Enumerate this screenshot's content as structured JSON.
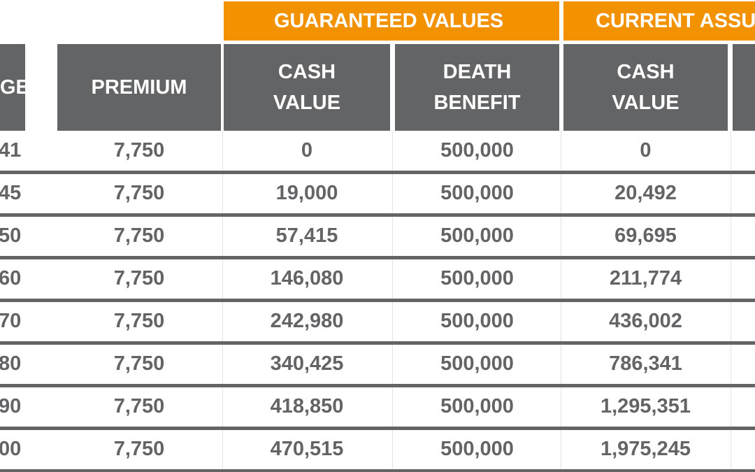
{
  "header": {
    "groups": [
      "GUARANTEED VALUES",
      "CURRENT ASSU"
    ],
    "columns": [
      [
        "GE"
      ],
      [
        "PREMIUM"
      ],
      [
        "CASH",
        "VALUE"
      ],
      [
        "DEATH",
        "BENEFIT"
      ],
      [
        "CASH",
        "VALUE"
      ]
    ]
  },
  "table": {
    "rows": [
      [
        "41",
        "7,750",
        "0",
        "500,000",
        "0"
      ],
      [
        "45",
        "7,750",
        "19,000",
        "500,000",
        "20,492"
      ],
      [
        "50",
        "7,750",
        "57,415",
        "500,000",
        "69,695"
      ],
      [
        "60",
        "7,750",
        "146,080",
        "500,000",
        "211,774"
      ],
      [
        "70",
        "7,750",
        "242,980",
        "500,000",
        "436,002"
      ],
      [
        "80",
        "7,750",
        "340,425",
        "500,000",
        "786,341"
      ],
      [
        "90",
        "7,750",
        "418,850",
        "500,000",
        "1,295,351"
      ],
      [
        "00",
        "7,750",
        "470,515",
        "500,000",
        "1,975,245"
      ]
    ]
  }
}
